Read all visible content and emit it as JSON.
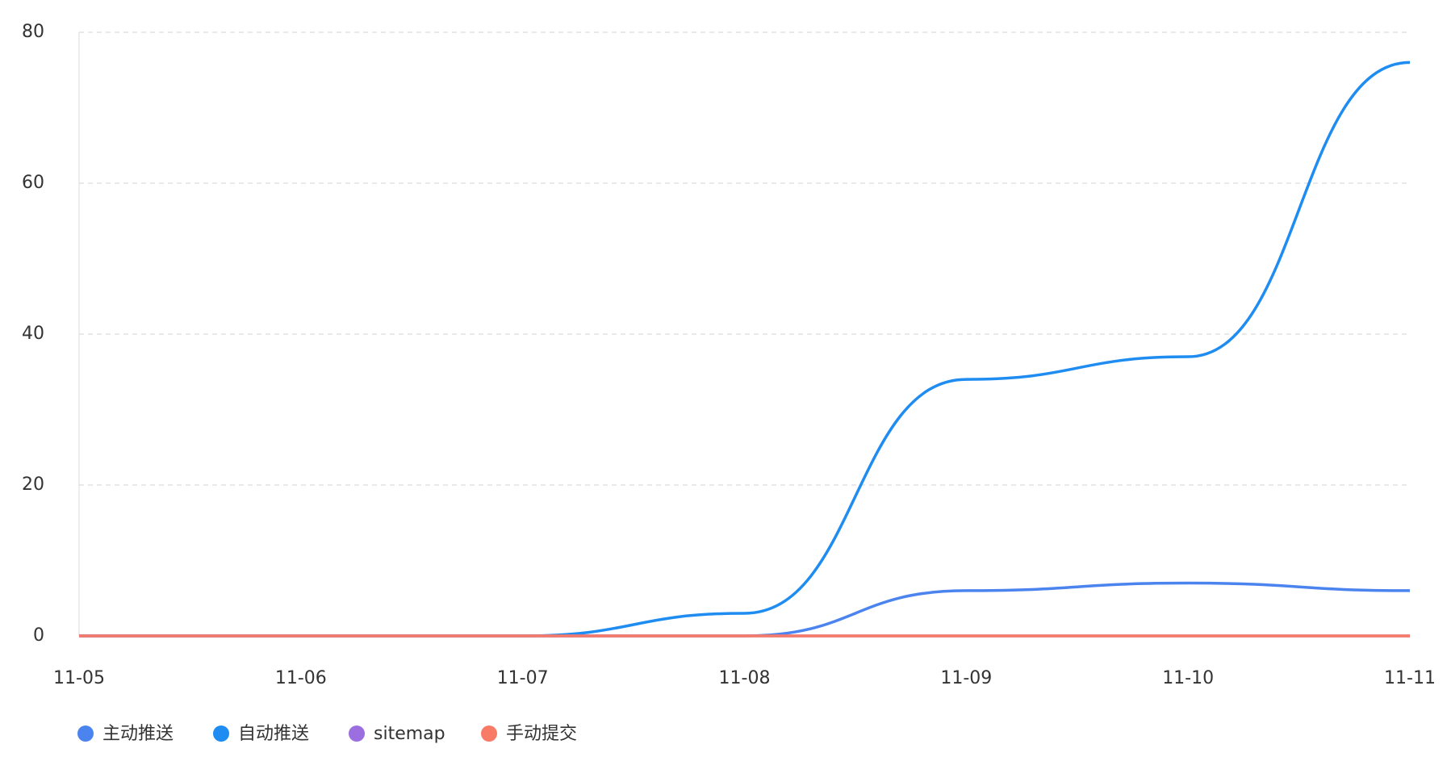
{
  "chart_data": {
    "type": "line",
    "categories": [
      "11-05",
      "11-06",
      "11-07",
      "11-08",
      "11-09",
      "11-10",
      "11-11"
    ],
    "series": [
      {
        "name": "主动推送",
        "color": "#4b84ee",
        "values": [
          0,
          0,
          0,
          0,
          6,
          7,
          6
        ]
      },
      {
        "name": "自动推送",
        "color": "#1e8cf0",
        "values": [
          0,
          0,
          0,
          3,
          34,
          37,
          76
        ]
      },
      {
        "name": "sitemap",
        "color": "#9b6fe0",
        "values": [
          0,
          0,
          0,
          0,
          0,
          0,
          0
        ]
      },
      {
        "name": "手动提交",
        "color": "#f77b66",
        "values": [
          0,
          0,
          0,
          0,
          0,
          0,
          0
        ]
      }
    ],
    "ylim": [
      0,
      80
    ],
    "yticks": [
      0,
      20,
      40,
      60,
      80
    ],
    "grid": true,
    "smooth": true
  }
}
